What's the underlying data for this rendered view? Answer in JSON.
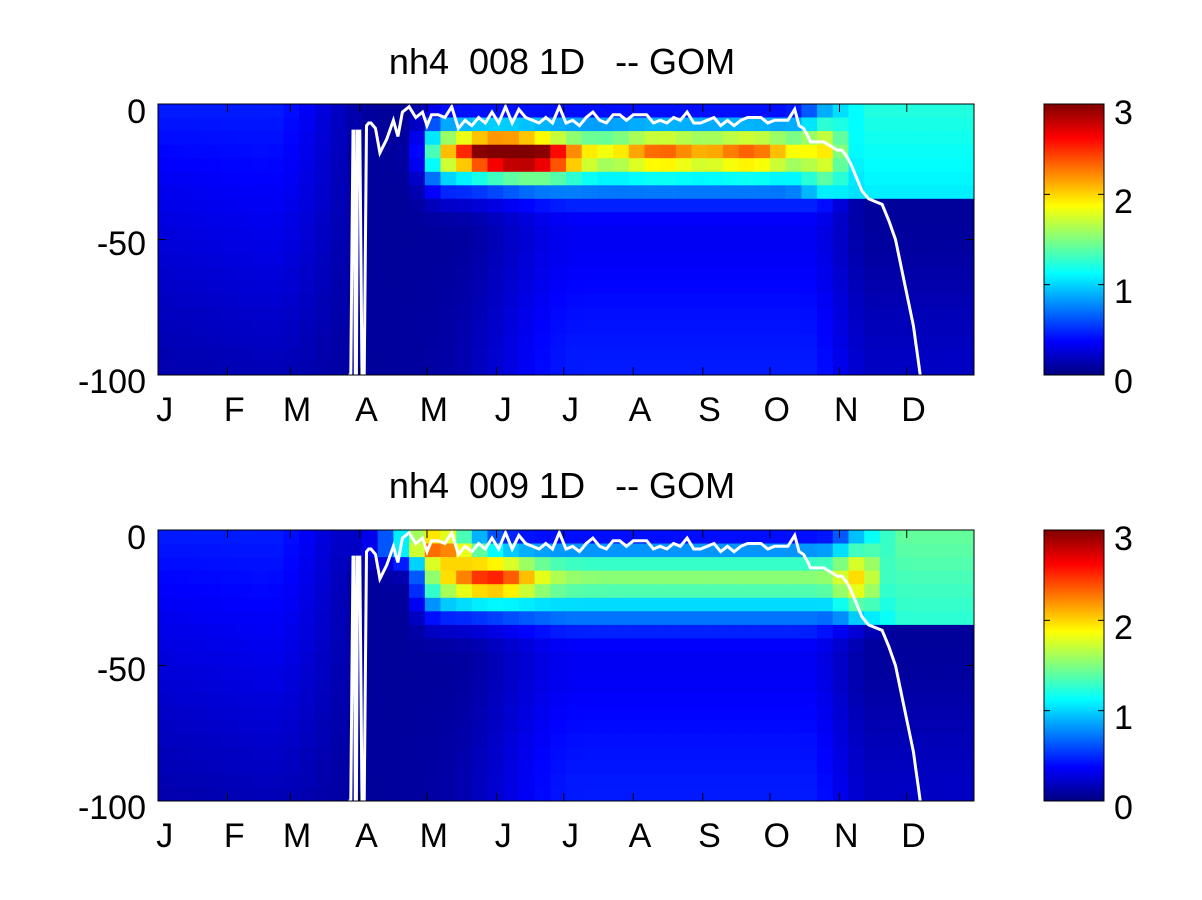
{
  "chart_data": [
    {
      "type": "heatmap",
      "title": "nh4  008 1D   -- GOM",
      "xlabel": "",
      "ylabel": "",
      "x_tick_labels": [
        "J",
        "F",
        "M",
        "A",
        "M",
        "J",
        "J",
        "A",
        "S",
        "O",
        "N",
        "D"
      ],
      "y_tick_labels": [
        "0",
        "-50",
        "-100"
      ],
      "ylim": [
        -100,
        0
      ],
      "xlim_day_of_year": [
        1,
        365
      ],
      "depth_levels": [
        0,
        -5,
        -10,
        -15,
        -20,
        -25,
        -30,
        -35,
        -40,
        -45,
        -50,
        -55,
        -60,
        -65,
        -70,
        -75,
        -80,
        -85,
        -90,
        -95,
        -100
      ],
      "colorbar": {
        "colormap": "jet",
        "clim": [
          0,
          3
        ],
        "tick_labels": [
          "0",
          "1",
          "2",
          "3"
        ]
      },
      "features": {
        "surface_nh4": 0.5,
        "winter_end_day": 90,
        "bloom_start_day": 120,
        "bloom_end_day": 305,
        "mixed_layer_end_depth": -33,
        "autumn_surface": 1.15,
        "subsurface_max": [
          {
            "day": 150,
            "depth": -18,
            "value": 2.6
          },
          {
            "day": 172,
            "depth": -20,
            "value": 2.4
          },
          {
            "day": 225,
            "depth": -18,
            "value": 2.0
          },
          {
            "day": 265,
            "depth": -18,
            "value": 2.0
          }
        ]
      },
      "line": {
        "name": "",
        "day": [
          86,
          87,
          88,
          88.5,
          89,
          89.5,
          90,
          91,
          92,
          93,
          94,
          95,
          96,
          98,
          100,
          103,
          106,
          108,
          110,
          113,
          116,
          119,
          121,
          123,
          126,
          129,
          132,
          135,
          138,
          141,
          144,
          147,
          150,
          153,
          156,
          159,
          162,
          165,
          168,
          171,
          174,
          177,
          180,
          183,
          186,
          189,
          192,
          195,
          198,
          201,
          204,
          207,
          210,
          213,
          216,
          219,
          222,
          225,
          228,
          231,
          234,
          237,
          240,
          243,
          246,
          249,
          252,
          255,
          258,
          261,
          264,
          267,
          270,
          273,
          276,
          279,
          282,
          285,
          287,
          289,
          291,
          292,
          294,
          296,
          298,
          300,
          302,
          304,
          306,
          308,
          310,
          312,
          315,
          318,
          321,
          324,
          327,
          330,
          332,
          334,
          336,
          338,
          339,
          340,
          341
        ],
        "depth": [
          -100,
          -100,
          -10,
          -10,
          -100,
          -100,
          -10,
          -10,
          -100,
          -100,
          -8,
          -7,
          -7,
          -9,
          -18,
          -13,
          -6,
          -12,
          -3,
          -1,
          -5,
          -3,
          -8,
          -4,
          -4,
          -5,
          -1,
          -9,
          -6,
          -8,
          -5,
          -7,
          -3,
          -7,
          -1,
          -7,
          -2,
          -5,
          -6,
          -7,
          -5,
          -7,
          -1,
          -7,
          -6,
          -8,
          -5,
          -3,
          -6,
          -7,
          -4,
          -4,
          -6,
          -4,
          -4,
          -4,
          -7,
          -6,
          -7,
          -5,
          -6,
          -3,
          -7,
          -7,
          -6,
          -5,
          -8,
          -6,
          -8,
          -6,
          -5,
          -5,
          -5,
          -7,
          -6,
          -6,
          -6,
          -2,
          -8,
          -9,
          -12,
          -14,
          -14,
          -14,
          -14,
          -15,
          -16,
          -17,
          -17,
          -19,
          -22,
          -26,
          -32,
          -35,
          -36,
          -37,
          -43,
          -50,
          -58,
          -66,
          -74,
          -82,
          -88,
          -94,
          -100
        ]
      }
    },
    {
      "type": "heatmap",
      "title": "nh4  009 1D   -- GOM",
      "xlabel": "",
      "ylabel": "",
      "x_tick_labels": [
        "J",
        "F",
        "M",
        "A",
        "M",
        "J",
        "J",
        "A",
        "S",
        "O",
        "N",
        "D"
      ],
      "y_tick_labels": [
        "0",
        "-50",
        "-100"
      ],
      "ylim": [
        -100,
        0
      ],
      "xlim_day_of_year": [
        1,
        365
      ],
      "depth_levels": [
        0,
        -5,
        -10,
        -15,
        -20,
        -25,
        -30,
        -35,
        -40,
        -45,
        -50,
        -55,
        -60,
        -65,
        -70,
        -75,
        -80,
        -85,
        -90,
        -95,
        -100
      ],
      "colorbar": {
        "colormap": "jet",
        "clim": [
          0,
          3
        ],
        "tick_labels": [
          "0",
          "1",
          "2",
          "3"
        ]
      },
      "features": {
        "surface_nh4": 0.5,
        "winter_end_day": 90,
        "bloom_start_day": 118,
        "bloom_end_day": 320,
        "mixed_layer_end_depth": -33,
        "autumn_surface": 1.35,
        "subsurface_max": [
          {
            "day": 123,
            "depth": -5,
            "value": 3.0
          },
          {
            "day": 150,
            "depth": -18,
            "value": 2.2
          }
        ]
      },
      "line": {
        "name": "",
        "day": [
          86,
          87,
          88,
          88.5,
          89,
          89.5,
          90,
          91,
          92,
          93,
          94,
          95,
          96,
          98,
          100,
          103,
          106,
          108,
          110,
          113,
          116,
          119,
          121,
          123,
          126,
          129,
          132,
          135,
          138,
          141,
          144,
          147,
          150,
          153,
          156,
          159,
          162,
          165,
          168,
          171,
          174,
          177,
          180,
          183,
          186,
          189,
          192,
          195,
          198,
          201,
          204,
          207,
          210,
          213,
          216,
          219,
          222,
          225,
          228,
          231,
          234,
          237,
          240,
          243,
          246,
          249,
          252,
          255,
          258,
          261,
          264,
          267,
          270,
          273,
          276,
          279,
          282,
          285,
          287,
          289,
          291,
          292,
          294,
          296,
          298,
          300,
          302,
          304,
          306,
          308,
          310,
          312,
          315,
          318,
          321,
          324,
          327,
          330,
          332,
          334,
          336,
          338,
          339,
          340,
          341
        ],
        "depth": [
          -100,
          -100,
          -10,
          -10,
          -100,
          -100,
          -10,
          -10,
          -100,
          -100,
          -8,
          -7,
          -7,
          -9,
          -18,
          -13,
          -6,
          -12,
          -3,
          -1,
          -5,
          -3,
          -8,
          -4,
          -4,
          -5,
          -1,
          -9,
          -6,
          -8,
          -5,
          -7,
          -3,
          -7,
          -1,
          -7,
          -2,
          -5,
          -6,
          -7,
          -5,
          -7,
          -1,
          -7,
          -6,
          -8,
          -5,
          -3,
          -6,
          -7,
          -4,
          -4,
          -6,
          -4,
          -4,
          -4,
          -7,
          -6,
          -7,
          -5,
          -6,
          -3,
          -7,
          -7,
          -6,
          -5,
          -8,
          -6,
          -8,
          -6,
          -5,
          -5,
          -5,
          -7,
          -6,
          -6,
          -6,
          -2,
          -8,
          -9,
          -12,
          -14,
          -14,
          -14,
          -14,
          -15,
          -16,
          -17,
          -17,
          -19,
          -22,
          -26,
          -32,
          -35,
          -36,
          -37,
          -43,
          -50,
          -58,
          -66,
          -74,
          -82,
          -88,
          -94,
          -100
        ]
      }
    }
  ]
}
